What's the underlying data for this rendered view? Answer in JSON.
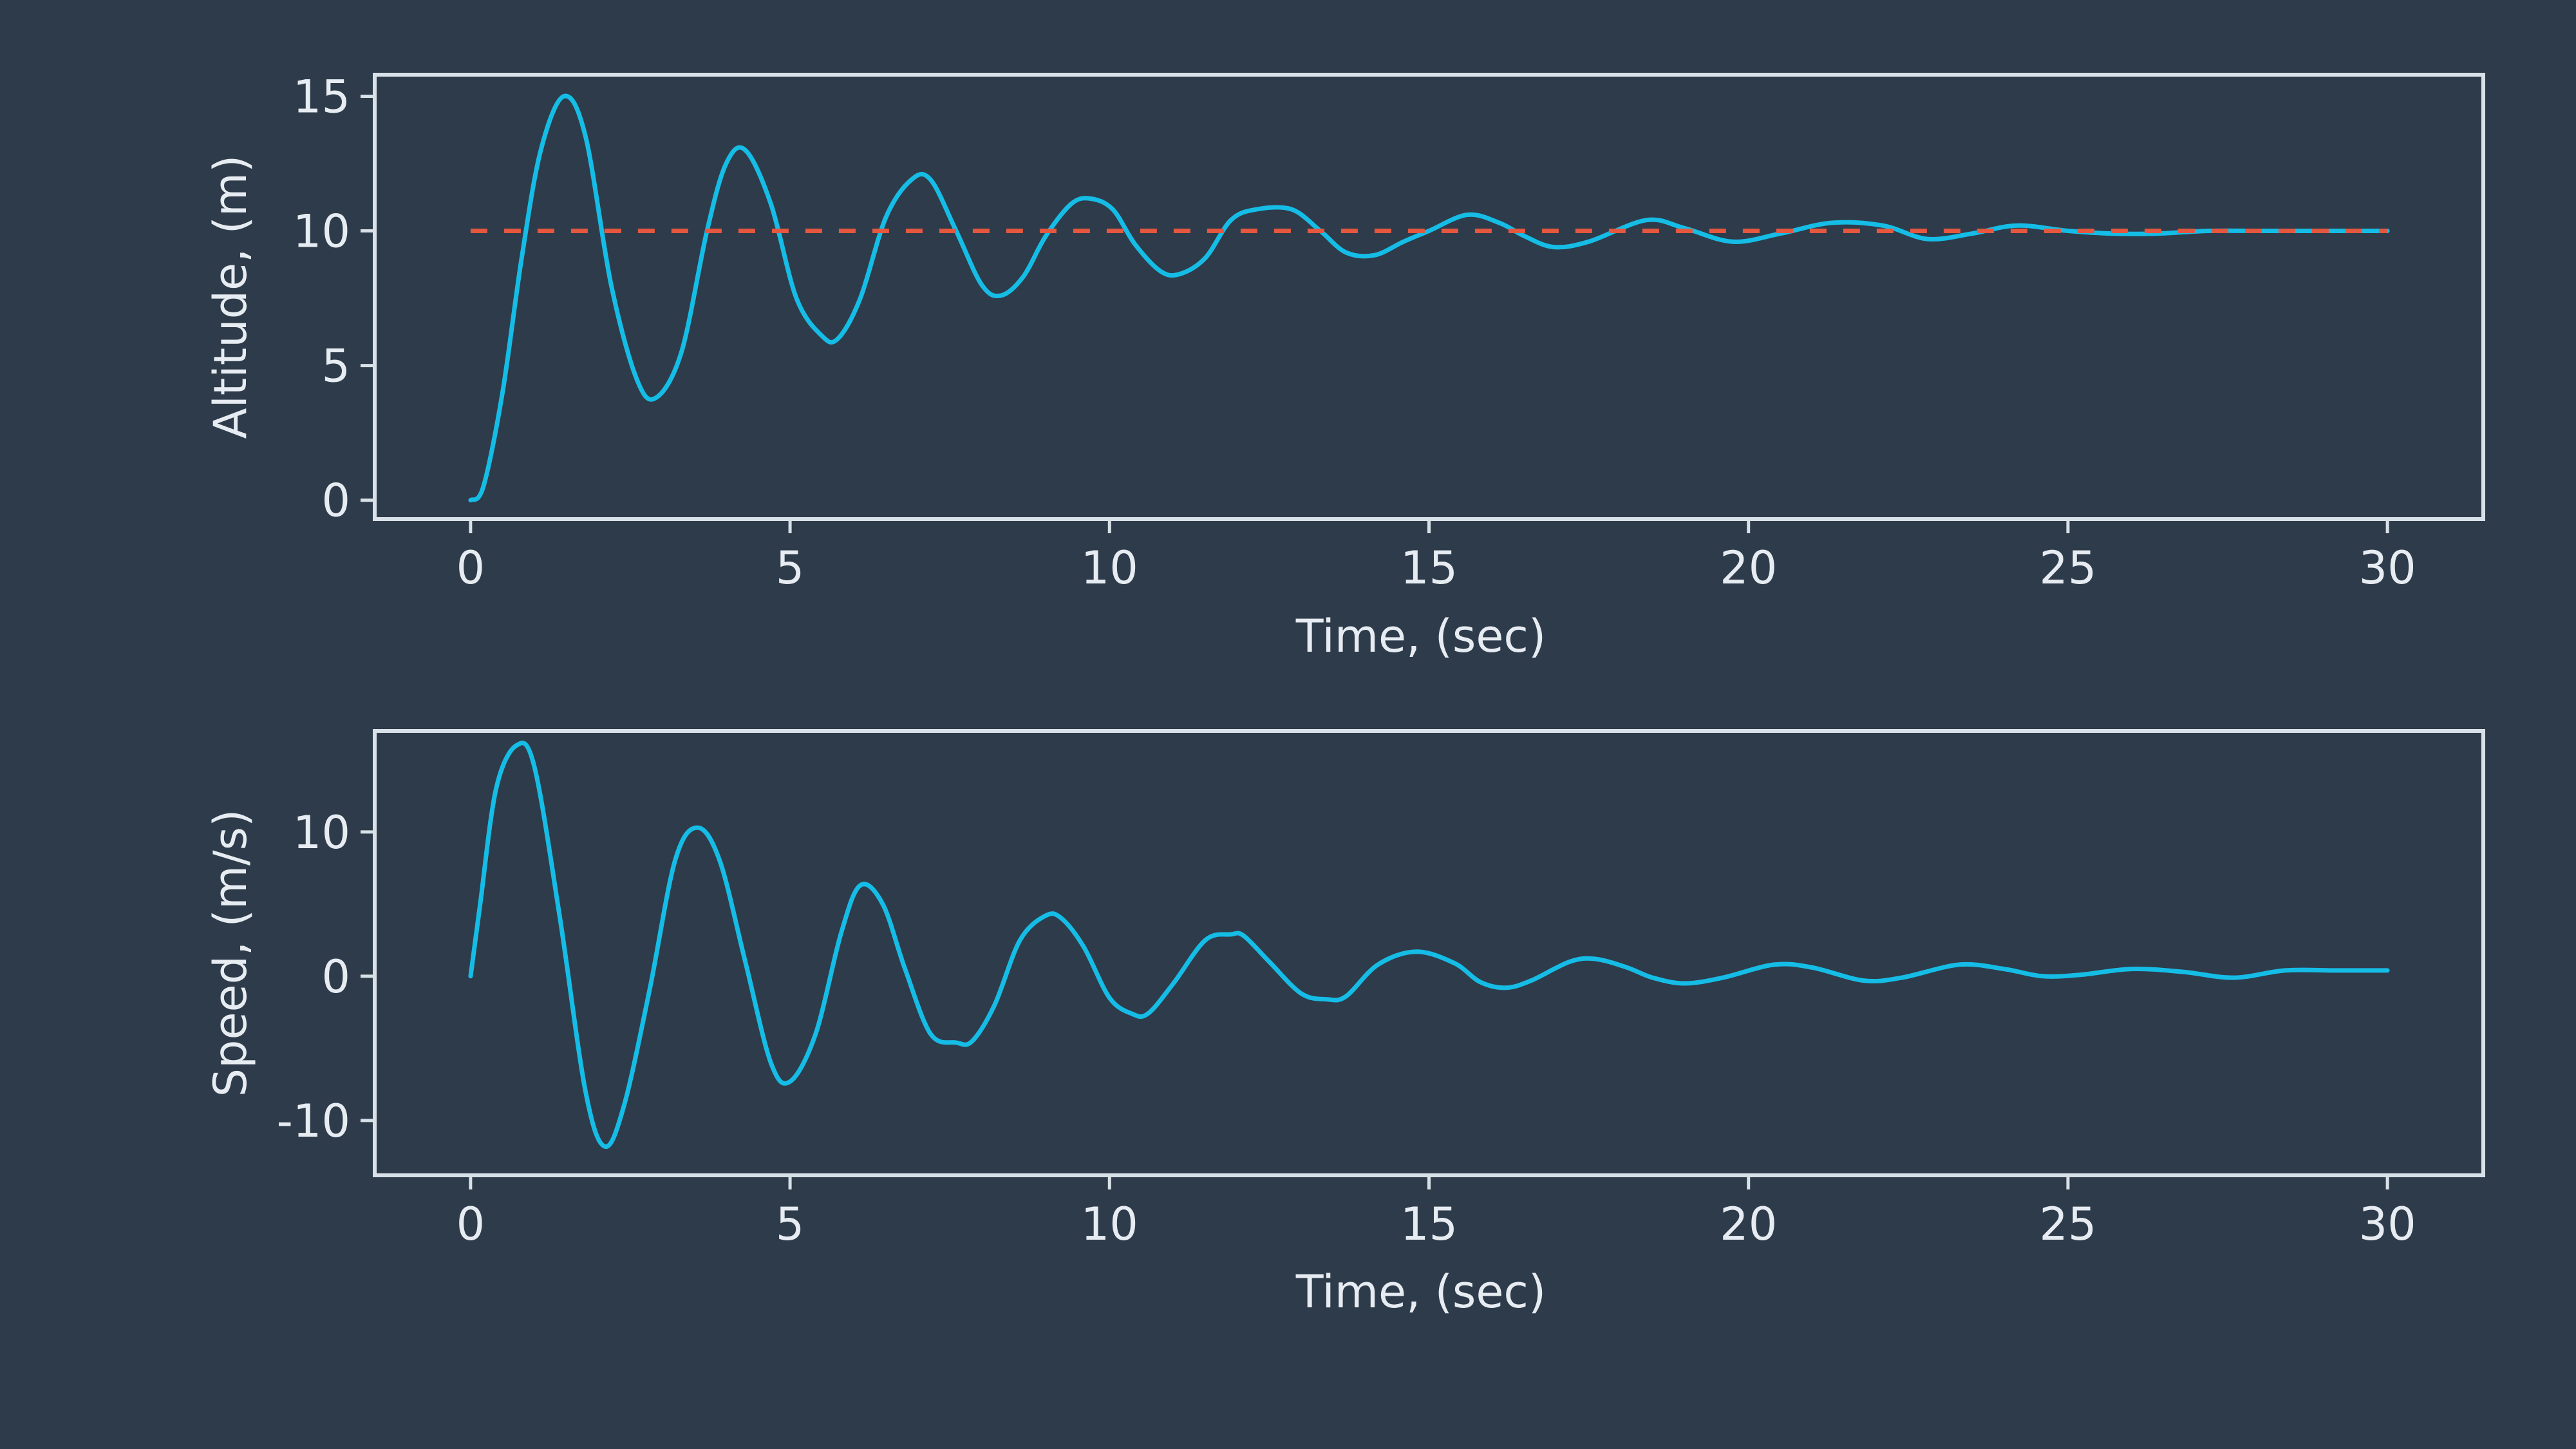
{
  "theme": {
    "background": "#2e3b4a",
    "axis_color": "#d9e1e8",
    "text_color": "#e6ecf1",
    "series_color": "#15bde6",
    "reference_color": "#e5573f"
  },
  "chart_data": [
    {
      "type": "line",
      "title": "",
      "xlabel": "Time, (sec)",
      "ylabel": "Altitude, (m)",
      "xlim": [
        -1.5,
        31.5
      ],
      "ylim": [
        -0.7,
        15.8
      ],
      "x_ticks": [
        0,
        5,
        10,
        15,
        20,
        25,
        30
      ],
      "x_tick_labels": [
        "0",
        "5",
        "10",
        "15",
        "20",
        "25",
        "30"
      ],
      "y_ticks": [
        0,
        5,
        10,
        15
      ],
      "y_tick_labels": [
        "0",
        "5",
        "10",
        "15"
      ],
      "grid": false,
      "series": [
        {
          "style": "solid",
          "color": "#15bde6",
          "x": [
            0,
            0.2,
            0.5,
            0.8,
            1.1,
            1.46,
            1.8,
            2.2,
            2.6,
            2.9,
            3.3,
            3.7,
            4.0,
            4.3,
            4.7,
            5.1,
            5.5,
            5.75,
            6.1,
            6.5,
            6.9,
            7.2,
            7.6,
            8.0,
            8.3,
            8.65,
            9.0,
            9.4,
            9.7,
            10.05,
            10.4,
            10.8,
            11.1,
            11.5,
            11.9,
            12.3,
            12.85,
            13.3,
            13.7,
            14.15,
            14.6,
            15.0,
            15.6,
            16.1,
            16.5,
            16.95,
            17.5,
            18.4,
            19.0,
            19.75,
            20.5,
            21.3,
            22.1,
            22.8,
            23.5,
            24.2,
            25.0,
            25.7,
            26.4,
            27.2,
            28.0,
            29.0,
            30.0
          ],
          "y": [
            0.0,
            0.5,
            4.0,
            9.0,
            13.0,
            15.0,
            13.5,
            8.0,
            4.5,
            3.8,
            5.5,
            10.0,
            12.5,
            13.0,
            11.0,
            7.5,
            6.1,
            6.0,
            7.5,
            10.5,
            11.9,
            11.9,
            10.0,
            8.0,
            7.6,
            8.3,
            9.8,
            11.0,
            11.2,
            10.8,
            9.5,
            8.5,
            8.4,
            9.0,
            10.4,
            10.8,
            10.8,
            10.0,
            9.2,
            9.1,
            9.6,
            10.0,
            10.6,
            10.3,
            9.8,
            9.4,
            9.6,
            10.4,
            10.1,
            9.6,
            9.9,
            10.3,
            10.2,
            9.7,
            9.9,
            10.2,
            10.0,
            9.9,
            9.9,
            10.0,
            10.0,
            10.0,
            10.0
          ]
        },
        {
          "style": "dashed",
          "color": "#e5573f",
          "x": [
            0,
            30
          ],
          "y": [
            10,
            10
          ]
        }
      ]
    },
    {
      "type": "line",
      "title": "",
      "xlabel": "Time, (sec)",
      "ylabel": "Speed, (m/s)",
      "xlim": [
        -1.5,
        31.5
      ],
      "ylim": [
        -13.8,
        17.0
      ],
      "x_ticks": [
        0,
        5,
        10,
        15,
        20,
        25,
        30
      ],
      "x_tick_labels": [
        "0",
        "5",
        "10",
        "15",
        "20",
        "25",
        "30"
      ],
      "y_ticks": [
        -10,
        0,
        10
      ],
      "y_tick_labels": [
        "-10",
        "0",
        "10"
      ],
      "grid": false,
      "series": [
        {
          "style": "solid",
          "color": "#15bde6",
          "x": [
            0,
            0.15,
            0.4,
            0.72,
            1.0,
            1.4,
            1.8,
            2.1,
            2.4,
            2.8,
            3.2,
            3.55,
            3.9,
            4.3,
            4.7,
            5.0,
            5.4,
            5.8,
            6.1,
            6.45,
            6.8,
            7.2,
            7.6,
            7.85,
            8.2,
            8.6,
            9.0,
            9.25,
            9.6,
            10.0,
            10.35,
            10.6,
            11.0,
            11.5,
            11.9,
            12.1,
            12.5,
            13.0,
            13.4,
            13.7,
            14.2,
            14.8,
            15.4,
            15.8,
            16.2,
            16.6,
            17.2,
            17.6,
            18.1,
            18.5,
            19.0,
            19.6,
            20.4,
            21.0,
            21.8,
            22.4,
            23.3,
            24.0,
            24.6,
            25.2,
            26.0,
            26.8,
            27.6,
            28.4,
            29.2,
            30.0
          ],
          "y": [
            0,
            5,
            13,
            16,
            14.5,
            4,
            -8,
            -11.8,
            -9,
            -1,
            8,
            10.3,
            8,
            1,
            -6,
            -7.3,
            -4,
            3,
            6.3,
            5,
            0.5,
            -4,
            -4.6,
            -4.5,
            -2,
            2.5,
            4.2,
            4.0,
            2.0,
            -1.5,
            -2.6,
            -2.6,
            -0.5,
            2.5,
            2.9,
            2.8,
            1.0,
            -1.2,
            -1.6,
            -1.4,
            0.8,
            1.7,
            0.9,
            -0.4,
            -0.8,
            -0.3,
            1.0,
            1.2,
            0.6,
            -0.1,
            -0.5,
            -0.1,
            0.8,
            0.6,
            -0.3,
            -0.1,
            0.8,
            0.5,
            0.0,
            0.1,
            0.5,
            0.3,
            -0.1,
            0.4,
            0.4,
            0.4
          ]
        }
      ]
    }
  ]
}
